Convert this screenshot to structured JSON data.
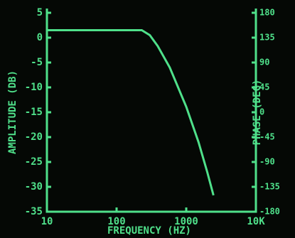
{
  "chart_data": {
    "type": "line",
    "x_label": "FREQUENCY (HZ)",
    "y_label": "AMPLITUDE (DB)",
    "y2_label": "PHASE (DEG)",
    "xscale": "log",
    "x": [
      10,
      100,
      230,
      300,
      390,
      580,
      1000,
      1500,
      2000,
      2460
    ],
    "series": [
      {
        "color": "#4fe08a",
        "values": [
          1.5,
          1.5,
          1.5,
          0.5,
          -1.7,
          -6,
          -13.9,
          -21,
          -27,
          -31.7
        ]
      }
    ],
    "xlim": [
      10,
      10000
    ],
    "xticks": [
      10,
      100,
      1000,
      {
        "value": 10000,
        "label": "10K"
      }
    ],
    "ylim": [
      -35,
      5
    ],
    "yticks": [
      5,
      0,
      -5,
      -10,
      -15,
      -20,
      -25,
      -30,
      -35
    ],
    "y2lim": [
      -180,
      180
    ],
    "y2ticks": [
      180,
      135,
      90,
      45,
      0,
      -45,
      -90,
      -135,
      -180
    ]
  }
}
